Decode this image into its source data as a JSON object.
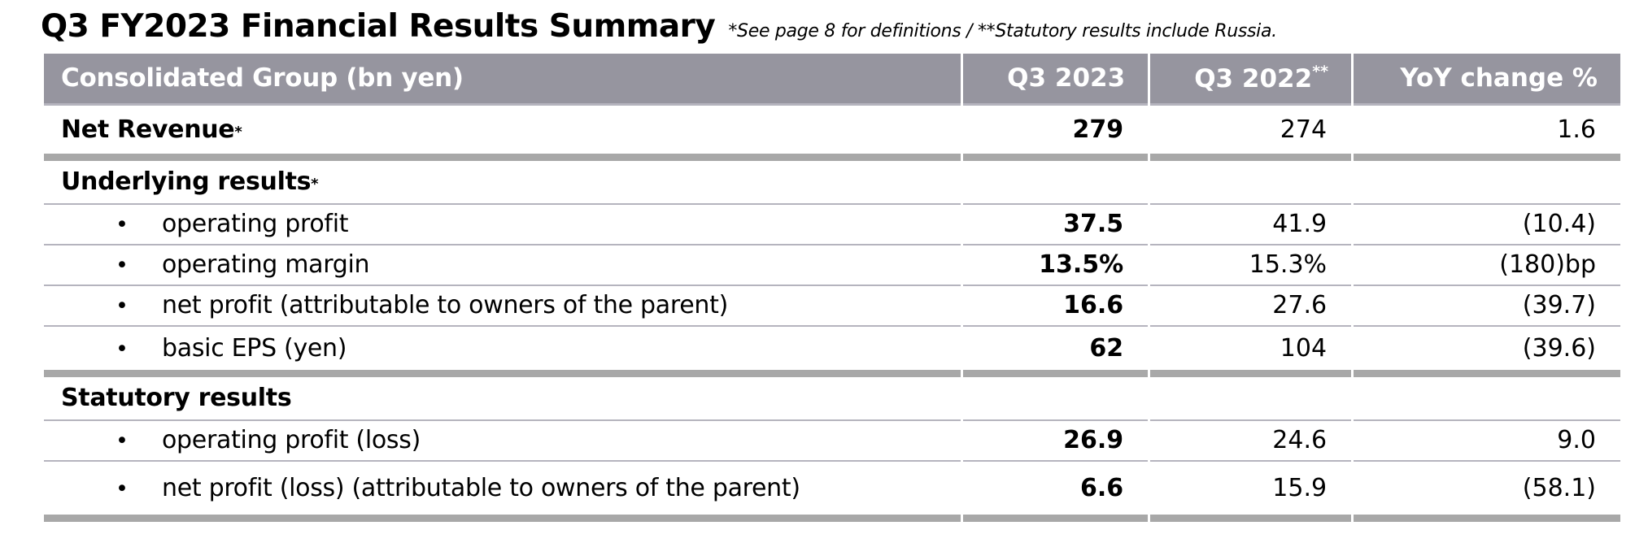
{
  "title": "Q3 FY2023 Financial Results Summary",
  "title_note": "*See page 8 for definitions / **Statutory results include Russia.",
  "colors": {
    "header_bg": "#96959f",
    "header_text": "#ffffff",
    "thick_border": "#a8a8a8",
    "thin_border": "#b5b4be",
    "body_text": "#000000"
  },
  "table": {
    "bullet": "•",
    "header": {
      "label": "Consolidated Group (bn yen)",
      "q3_2023": "Q3 2023",
      "q3_2022": "Q3 2022",
      "q3_2022_note": "**",
      "yoy": "YoY change %"
    },
    "rows": [
      {
        "label": "Net Revenue",
        "note": "*",
        "q3_2023": "279",
        "q3_2022": "274",
        "yoy": "1.6"
      },
      {
        "label": "Underlying results",
        "note": "*",
        "q3_2023": "",
        "q3_2022": "",
        "yoy": ""
      },
      {
        "label": "operating profit",
        "q3_2023": "37.5",
        "q3_2022": "41.9",
        "yoy": "(10.4)"
      },
      {
        "label": "operating margin",
        "q3_2023": "13.5%",
        "q3_2022": "15.3%",
        "yoy": "(180)bp"
      },
      {
        "label": "net profit (attributable to owners of the parent)",
        "q3_2023": "16.6",
        "q3_2022": "27.6",
        "yoy": "(39.7)"
      },
      {
        "label": "basic EPS (yen)",
        "q3_2023": "62",
        "q3_2022": "104",
        "yoy": "(39.6)"
      },
      {
        "label": "Statutory results",
        "q3_2023": "",
        "q3_2022": "",
        "yoy": ""
      },
      {
        "label": "operating profit (loss)",
        "q3_2023": "26.9",
        "q3_2022": "24.6",
        "yoy": "9.0"
      },
      {
        "label": "net profit (loss) (attributable to owners of the parent)",
        "q3_2023": "6.6",
        "q3_2022": "15.9",
        "yoy": "(58.1)"
      }
    ]
  }
}
